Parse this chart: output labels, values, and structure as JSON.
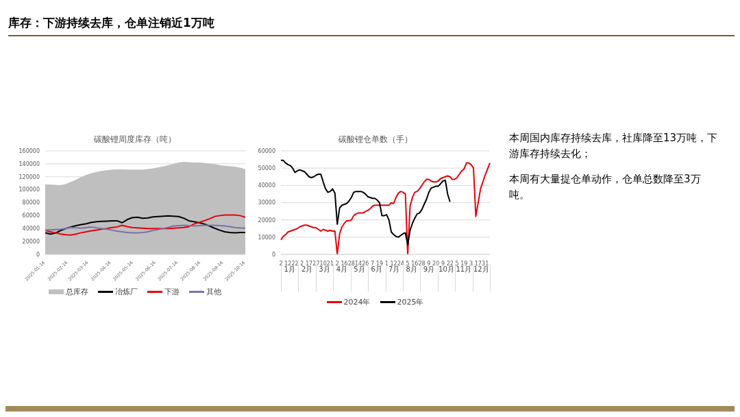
{
  "chart_data": [
    {
      "type": "other",
      "title": "库存：下游持续去库，仓单注销近1万吨"
    },
    {
      "type": "line",
      "title": "碳酸锂周度库存（吨）",
      "x": [
        "2025-01-16",
        "2025-01-23",
        "2025-01-30",
        "2025-02-06",
        "2025-02-13",
        "2025-02-20",
        "2025-02-27",
        "2025-03-06",
        "2025-03-13",
        "2025-03-20",
        "2025-03-27",
        "2025-04-03",
        "2025-04-10",
        "2025-04-17",
        "2025-04-24",
        "2025-05-01",
        "2025-05-08",
        "2025-05-15",
        "2025-05-22",
        "2025-05-29",
        "2025-06-05",
        "2025-06-12",
        "2025-06-19",
        "2025-06-26",
        "2025-07-03",
        "2025-07-10",
        "2025-07-17",
        "2025-07-24",
        "2025-07-31",
        "2025-08-07",
        "2025-08-14",
        "2025-08-21",
        "2025-08-28",
        "2025-09-04",
        "2025-09-11",
        "2025-09-18",
        "2025-09-25",
        "2025-10-02",
        "2025-10-09",
        "2025-10-16"
      ],
      "series": [
        {
          "name": "总库存",
          "type": "area",
          "color": "#bfbfbf",
          "values": [
            108000,
            108000,
            107500,
            107000,
            109000,
            112000,
            115500,
            119500,
            123000,
            125500,
            127500,
            129000,
            130000,
            131000,
            131500,
            131500,
            131000,
            131000,
            131000,
            131000,
            132000,
            133000,
            134500,
            136000,
            138000,
            140000,
            142000,
            143000,
            142500,
            142000,
            142000,
            141500,
            140500,
            139500,
            138000,
            137000,
            136500,
            135500,
            134000,
            132000
          ]
        },
        {
          "name": "冶炼厂",
          "color": "#000000",
          "values": [
            33500,
            31500,
            33000,
            37000,
            40000,
            42500,
            44500,
            46000,
            47500,
            49500,
            50500,
            51000,
            51500,
            52000,
            52000,
            49000,
            54000,
            57000,
            57500,
            56000,
            56500,
            58000,
            58500,
            59000,
            59500,
            59000,
            58500,
            56000,
            52000,
            50500,
            49000,
            47000,
            44000,
            40500,
            37500,
            35000,
            34000,
            33500,
            34000,
            34000
          ]
        },
        {
          "name": "下游",
          "color": "#e8000b",
          "values": [
            37000,
            35000,
            33500,
            31500,
            30500,
            30000,
            31500,
            33500,
            35000,
            36500,
            37500,
            39000,
            40000,
            41500,
            42500,
            45000,
            43000,
            41500,
            41000,
            40500,
            40000,
            40000,
            40000,
            40000,
            40000,
            40500,
            41000,
            41500,
            43000,
            47000,
            49500,
            52000,
            55000,
            58500,
            60000,
            61000,
            61000,
            61000,
            60000,
            57500
          ]
        },
        {
          "name": "其他",
          "color": "#7f6fa8",
          "values": [
            37500,
            38000,
            38500,
            39000,
            40000,
            41500,
            41000,
            40500,
            41500,
            42500,
            41000,
            40000,
            39000,
            37500,
            36000,
            35000,
            34000,
            33500,
            33500,
            34000,
            35000,
            37000,
            38500,
            40000,
            42000,
            44000,
            44500,
            45000,
            44500,
            44000,
            44500,
            45000,
            45000,
            45000,
            44500,
            44000,
            43000,
            41500,
            41000,
            40500
          ]
        }
      ],
      "xlim": [
        "2025-01-16",
        "2025-10-16"
      ],
      "xticks": [
        "2025-01-16",
        "2025-02-16",
        "2025-03-16",
        "2025-04-16",
        "2025-05-16",
        "2025-06-16",
        "2025-07-16",
        "2025-08-16",
        "2025-09-16",
        "2025-10-16"
      ],
      "ylim": [
        0,
        160000
      ],
      "yticks": [
        0,
        20000,
        40000,
        60000,
        80000,
        100000,
        120000,
        140000,
        160000
      ],
      "grid": "y",
      "legend": "bottom"
    },
    {
      "type": "line",
      "title": "碳酸锂仓单数（手）",
      "categories": [
        "2",
        null,
        null,
        "12",
        null,
        null,
        "22",
        null,
        null,
        "2",
        null,
        null,
        "17",
        null,
        null,
        "27",
        null,
        null,
        "10",
        null,
        null,
        "21",
        null,
        null,
        "2",
        null,
        null,
        "16",
        null,
        null,
        "28",
        null,
        null,
        "14",
        null,
        null,
        "26",
        null,
        null,
        "7",
        null,
        null,
        "19",
        null,
        null,
        "1",
        null,
        null,
        "12",
        null,
        null,
        "24",
        null,
        null,
        "5",
        null,
        null,
        "16",
        null,
        null,
        "28",
        null,
        null,
        "9",
        null,
        null,
        "20",
        null,
        null,
        "9",
        null,
        null,
        "22",
        null,
        null,
        "5",
        null,
        null,
        "19",
        null,
        null,
        "3",
        null,
        null,
        "17",
        null,
        null,
        "31",
        null,
        null
      ],
      "series": [
        {
          "name": "2024年",
          "color": "#e8000b",
          "values": [
            8500,
            10500,
            11500,
            13000,
            13500,
            14000,
            14500,
            15000,
            16000,
            16500,
            17000,
            17000,
            16500,
            16000,
            15500,
            15500,
            14500,
            13500,
            14500,
            14000,
            13500,
            14000,
            13500,
            13500,
            0,
            12000,
            16000,
            18000,
            19500,
            19500,
            20000,
            22500,
            23500,
            24000,
            24000,
            24000,
            25000,
            25500,
            26500,
            28000,
            28500,
            28500,
            28500,
            28500,
            28500,
            28500,
            28500,
            30000,
            29500,
            33000,
            35500,
            36500,
            36000,
            35000,
            0,
            28000,
            33000,
            36000,
            36500,
            38000,
            40000,
            42000,
            43500,
            43500,
            42500,
            42000,
            42000,
            42500,
            44000,
            44500,
            45000,
            45500,
            45000,
            43500,
            43500,
            44500,
            46500,
            48500,
            49500,
            53000,
            53000,
            52000,
            50000,
            22000,
            30000,
            38000,
            42000,
            46000,
            49500,
            53000
          ]
        },
        {
          "name": "2025年",
          "color": "#000000",
          "values": [
            54500,
            54500,
            53000,
            52000,
            51500,
            50000,
            47500,
            48500,
            49000,
            48500,
            48000,
            46500,
            45000,
            44500,
            45000,
            46000,
            46500,
            46500,
            42000,
            38000,
            36000,
            36500,
            38000,
            35500,
            17500,
            27000,
            28500,
            29000,
            29500,
            31000,
            33000,
            36000,
            36500,
            36500,
            36500,
            36000,
            35000,
            33500,
            33000,
            32500,
            32500,
            31500,
            30000,
            22500,
            22500,
            23000,
            20000,
            13000,
            11500,
            10500,
            10000,
            11000,
            12000,
            12500,
            5500,
            14000,
            18000,
            21000,
            23500,
            24000,
            26000,
            29000,
            32000,
            36000,
            38500,
            39000,
            39500,
            39500,
            41000,
            42500,
            43000,
            35000,
            30500,
            null,
            null,
            null,
            null,
            null,
            null,
            null,
            null,
            null,
            null,
            null,
            null,
            null,
            null,
            null,
            null,
            null
          ]
        }
      ],
      "annotations": [
        "1月",
        "2月",
        "3月",
        "4月",
        "5月",
        "6月",
        "7月",
        "8月",
        "9月",
        "10月",
        "11月",
        "12月"
      ],
      "ylim": [
        0,
        60000
      ],
      "yticks": [
        0,
        10000,
        20000,
        30000,
        40000,
        50000,
        60000
      ],
      "grid": "y",
      "legend": "bottom"
    },
    {
      "type": "other",
      "annotations": [
        "本周国内库存持续去库，社库降至13万吨，下游库存持续去化；",
        "本周有大量提仓单动作，仓单总数降至3万吨。"
      ]
    }
  ]
}
